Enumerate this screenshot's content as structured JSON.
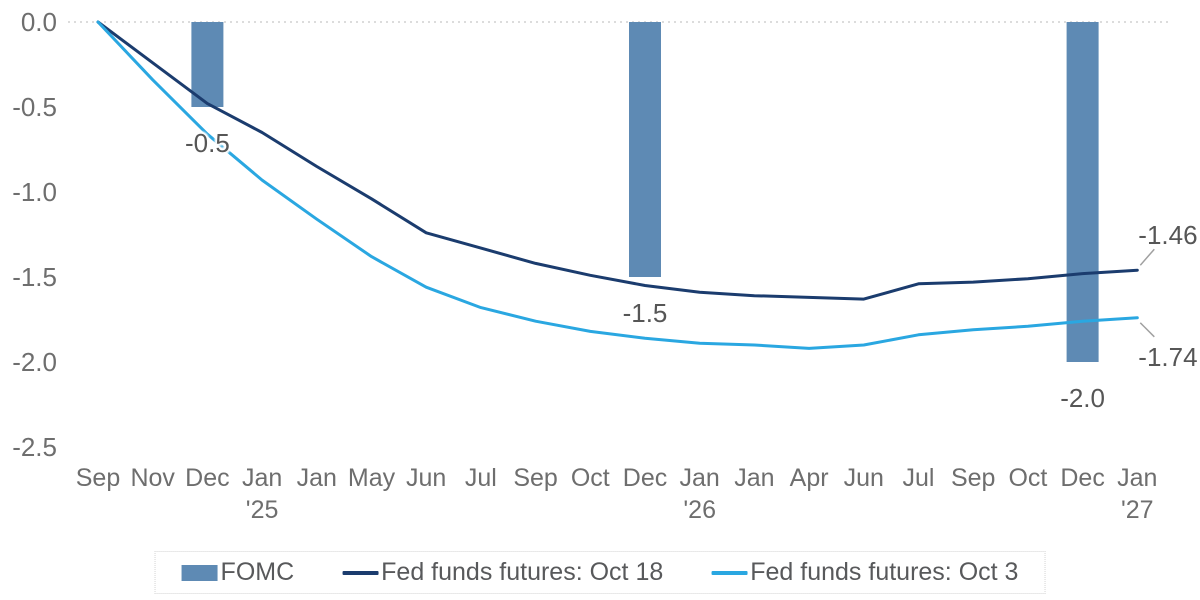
{
  "chart_data": {
    "type": "mixed-bar-line",
    "title": "",
    "xlabel": "",
    "ylabel": "",
    "ylim": [
      -2.5,
      0
    ],
    "grid": "dotted-zero-baseline-only",
    "yticks": [
      "0.0",
      "-0.5",
      "-1.0",
      "-1.5",
      "-2.0",
      "-2.5"
    ],
    "categories": [
      "Sep",
      "Nov",
      "Dec",
      "Jan",
      "Jan",
      "May",
      "Jun",
      "Jul",
      "Sep",
      "Oct",
      "Dec",
      "Jan",
      "Jan",
      "Apr",
      "Jun",
      "Jul",
      "Sep",
      "Oct",
      "Dec",
      "Jan"
    ],
    "year_labels": [
      {
        "index": 3,
        "label": "'25"
      },
      {
        "index": 11,
        "label": "'26"
      },
      {
        "index": 19,
        "label": "'27"
      }
    ],
    "bars": {
      "name": "FOMC",
      "color": "#5e8ab4",
      "points": [
        {
          "index": 2,
          "value": -0.5,
          "label": "-0.5"
        },
        {
          "index": 10,
          "value": -1.5,
          "label": "-1.5"
        },
        {
          "index": 18,
          "value": -2.0,
          "label": "-2.0"
        }
      ]
    },
    "series": [
      {
        "name": "Fed funds futures: Oct 18",
        "color": "#1b3c6e",
        "end_label": "-1.46",
        "end_label_position": "above",
        "values": [
          0,
          -0.24,
          -0.48,
          -0.65,
          -0.85,
          -1.04,
          -1.24,
          -1.33,
          -1.42,
          -1.49,
          -1.55,
          -1.59,
          -1.61,
          -1.62,
          -1.63,
          -1.54,
          -1.53,
          -1.51,
          -1.48,
          -1.46
        ]
      },
      {
        "name": "Fed funds futures: Oct 3",
        "color": "#2aa7e1",
        "end_label": "-1.74",
        "end_label_position": "below",
        "values": [
          0,
          -0.34,
          -0.66,
          -0.93,
          -1.16,
          -1.38,
          -1.56,
          -1.68,
          -1.76,
          -1.82,
          -1.86,
          -1.89,
          -1.9,
          -1.92,
          -1.9,
          -1.84,
          -1.81,
          -1.79,
          -1.76,
          -1.74
        ]
      }
    ],
    "legend": {
      "position": "bottom",
      "items": [
        "FOMC",
        "Fed funds futures: Oct 18",
        "Fed funds futures: Oct 3"
      ]
    }
  },
  "colors": {
    "background": "#ffffff",
    "bar": "#5e8ab4",
    "line_oct18": "#1b3c6e",
    "line_oct3": "#2aa7e1",
    "axis_text": "#6e6e6e",
    "data_label_text": "#565656",
    "legend_text": "#58595b",
    "grid": "#dcdcdc",
    "leader_line": "#a0a0a0",
    "legend_border": "#d4d4d4"
  }
}
